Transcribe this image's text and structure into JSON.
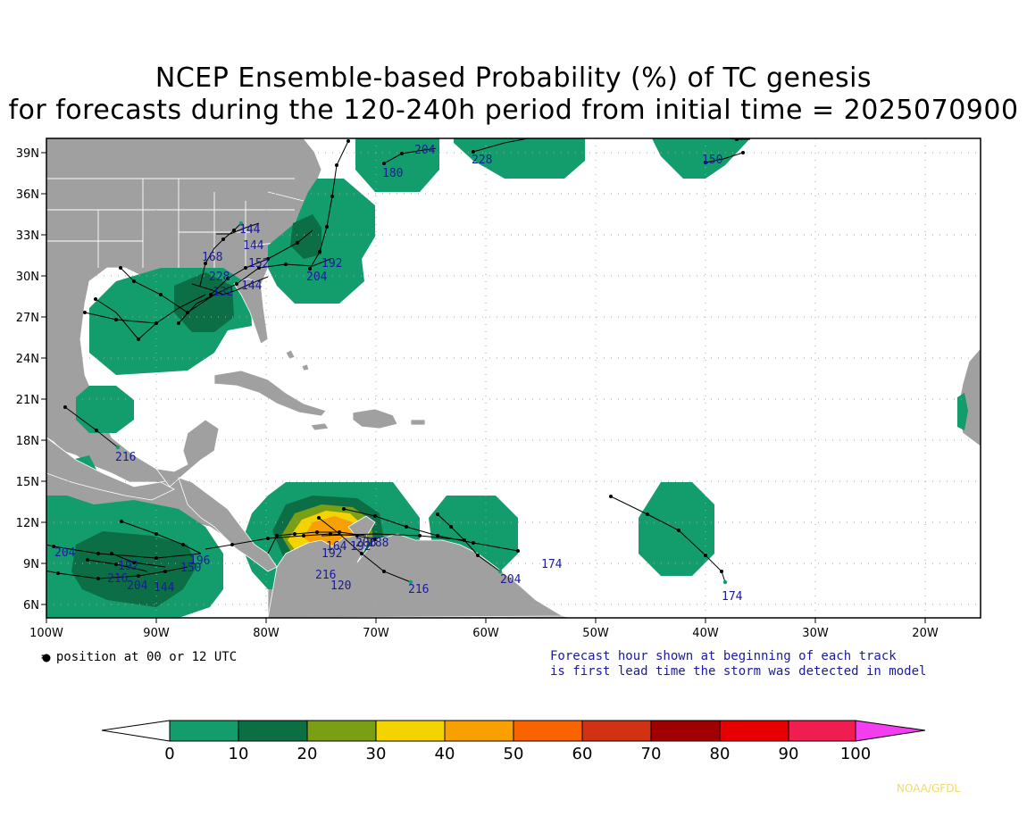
{
  "title_line1": "NCEP Ensemble-based Probability (%) of TC genesis",
  "title_line2": "for forecasts during the 120-240h period from initial time = 2025070900",
  "lat_labels": [
    "39N",
    "36N",
    "33N",
    "30N",
    "27N",
    "24N",
    "21N",
    "18N",
    "15N",
    "12N",
    "9N",
    "6N"
  ],
  "lon_labels": [
    "100W",
    "90W",
    "80W",
    "70W",
    "60W",
    "50W",
    "40W",
    "30W",
    "20W"
  ],
  "legend_note": "= position at 00 or 12 UTC",
  "forecast_note_line1": "Forecast hour shown at beginning of each track",
  "forecast_note_line2": "is first lead time the storm was detected in model",
  "credit": "NOAA/GFDL",
  "colorbar": {
    "ticks": [
      "0",
      "10",
      "20",
      "30",
      "40",
      "50",
      "60",
      "70",
      "80",
      "90",
      "100"
    ],
    "colors": [
      "#ffffff",
      "#139c6c",
      "#0c6e44",
      "#7a9e14",
      "#f4d400",
      "#f8a000",
      "#fa6400",
      "#d23214",
      "#a00000",
      "#e60000",
      "#f01e50",
      "#f43cf0"
    ]
  },
  "track_labels": [
    "180",
    "204",
    "228",
    "150",
    "144",
    "144",
    "168",
    "152",
    "144",
    "132",
    "228",
    "192",
    "204",
    "216",
    "204",
    "192",
    "216",
    "204",
    "144",
    "150",
    "192",
    "216",
    "120",
    "216",
    "174",
    "204",
    "174",
    "196",
    "164",
    "192",
    "206",
    "188"
  ],
  "colors": {
    "land": "#a0a0a0",
    "ocean": "#ffffff",
    "p10": "#139c6c",
    "p20": "#0c6e44",
    "p30": "#7a9e14",
    "p40": "#f4d400",
    "p50": "#f8a000",
    "track": "#000000",
    "label": "#1a1a9c"
  }
}
